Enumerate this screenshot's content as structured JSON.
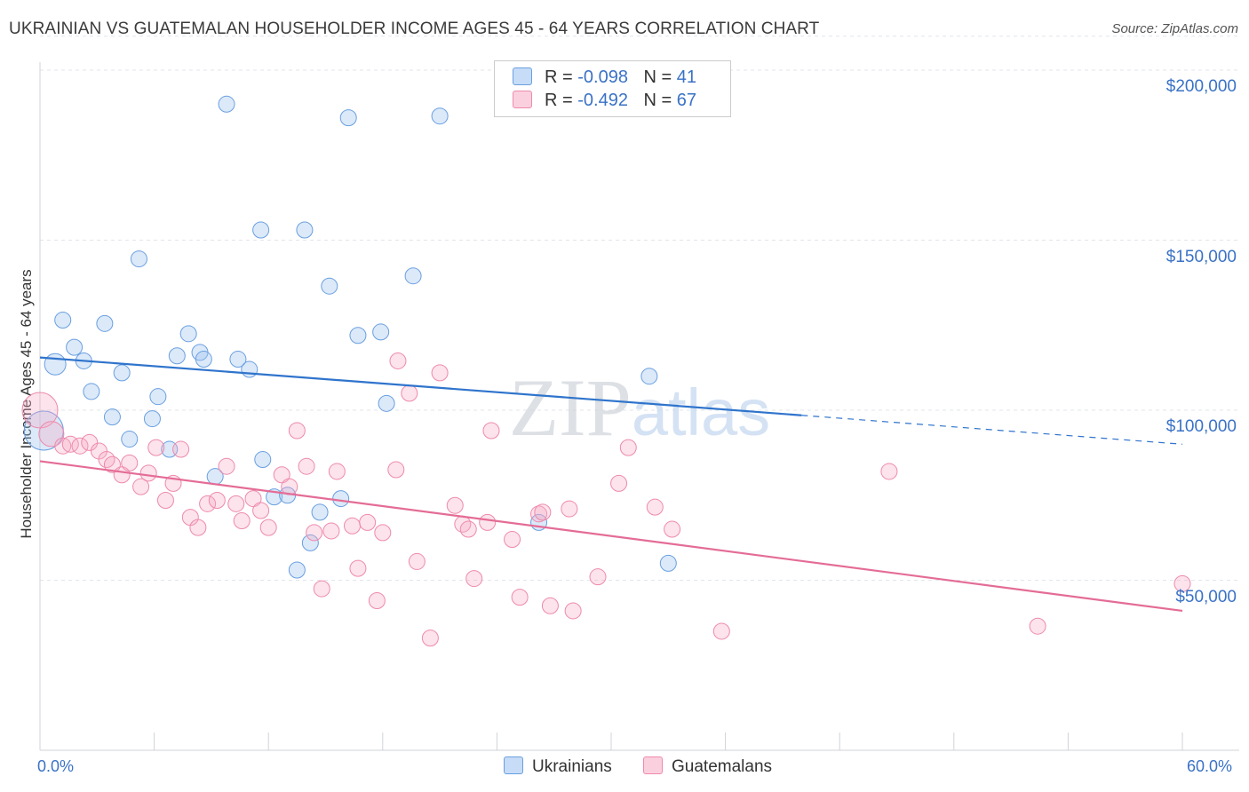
{
  "chart_data": {
    "type": "scatter",
    "title": "UKRAINIAN VS GUATEMALAN HOUSEHOLDER INCOME AGES 45 - 64 YEARS CORRELATION CHART",
    "source": "Source: ZipAtlas.com",
    "xlabel": "",
    "ylabel": "Householder Income Ages 45 - 64 years",
    "xlim": [
      0,
      60
    ],
    "ylim": [
      0,
      210000
    ],
    "x_tick_labels": [
      "0.0%",
      "60.0%"
    ],
    "y_tick_labels": [
      "$200,000",
      "$150,000",
      "$100,000",
      "$50,000"
    ],
    "y_ticks": [
      200000,
      150000,
      100000,
      50000
    ],
    "grid": true,
    "watermark": "ZIPatlas",
    "legend": [
      {
        "name": "Ukrainians",
        "r_label": "R =",
        "r": "-0.098",
        "n_label": "N =",
        "n": "41",
        "color": "#6a9fe0"
      },
      {
        "name": "Guatemalans",
        "r_label": "R =",
        "r": "-0.492",
        "n_label": "N =",
        "n": "67",
        "color": "#ee8aab"
      }
    ],
    "series": [
      {
        "name": "Ukrainians",
        "color": "#6a9fe0",
        "trend": {
          "x0": 0,
          "y0": 115500,
          "x1": 40,
          "y1": 98500,
          "dash_to_x": 60,
          "dash_to_y": 90000
        },
        "points": [
          [
            0.2,
            94000,
            22
          ],
          [
            0.8,
            113500,
            12
          ],
          [
            1.2,
            126500,
            9
          ],
          [
            1.8,
            118500,
            9
          ],
          [
            2.3,
            114500,
            9
          ],
          [
            2.7,
            105500,
            9
          ],
          [
            3.4,
            125500,
            9
          ],
          [
            3.8,
            98000,
            9
          ],
          [
            4.3,
            111000,
            9
          ],
          [
            4.7,
            91500,
            9
          ],
          [
            5.2,
            144500,
            9
          ],
          [
            5.9,
            97500,
            9
          ],
          [
            6.2,
            104000,
            9
          ],
          [
            6.8,
            88500,
            9
          ],
          [
            7.2,
            116000,
            9
          ],
          [
            7.8,
            122500,
            9
          ],
          [
            8.4,
            117000,
            9
          ],
          [
            8.6,
            115000,
            9
          ],
          [
            9.2,
            80500,
            9
          ],
          [
            9.8,
            190000,
            9
          ],
          [
            10.4,
            115000,
            9
          ],
          [
            11.0,
            112000,
            9
          ],
          [
            11.6,
            153000,
            9
          ],
          [
            11.7,
            85500,
            9
          ],
          [
            12.3,
            74500,
            9
          ],
          [
            13.0,
            75000,
            9
          ],
          [
            13.9,
            153000,
            9
          ],
          [
            13.5,
            53000,
            9
          ],
          [
            14.2,
            61000,
            9
          ],
          [
            14.7,
            70000,
            9
          ],
          [
            15.2,
            136500,
            9
          ],
          [
            15.8,
            74000,
            9
          ],
          [
            16.2,
            186000,
            9
          ],
          [
            16.7,
            122000,
            9
          ],
          [
            17.9,
            123000,
            9
          ],
          [
            18.2,
            102000,
            9
          ],
          [
            19.6,
            139500,
            9
          ],
          [
            21.0,
            186500,
            9
          ],
          [
            26.2,
            67000,
            9
          ],
          [
            32.0,
            110000,
            9
          ],
          [
            33.0,
            55000,
            9
          ]
        ]
      },
      {
        "name": "Guatemalans",
        "color": "#ee8aab",
        "trend": {
          "x0": 0,
          "y0": 85000,
          "x1": 60,
          "y1": 41000
        },
        "points": [
          [
            0.0,
            100000,
            20
          ],
          [
            0.6,
            93000,
            14
          ],
          [
            1.2,
            89500,
            9
          ],
          [
            1.6,
            90000,
            9
          ],
          [
            2.1,
            89500,
            9
          ],
          [
            2.6,
            90500,
            9
          ],
          [
            3.1,
            88000,
            9
          ],
          [
            3.5,
            85500,
            9
          ],
          [
            3.8,
            84000,
            9
          ],
          [
            4.3,
            81000,
            9
          ],
          [
            4.7,
            84500,
            9
          ],
          [
            5.3,
            77500,
            9
          ],
          [
            5.7,
            81500,
            9
          ],
          [
            6.1,
            89000,
            9
          ],
          [
            6.6,
            73500,
            9
          ],
          [
            7.0,
            78500,
            9
          ],
          [
            7.4,
            88500,
            9
          ],
          [
            7.9,
            68500,
            9
          ],
          [
            8.3,
            65500,
            9
          ],
          [
            8.8,
            72500,
            9
          ],
          [
            9.3,
            73500,
            9
          ],
          [
            9.8,
            83500,
            9
          ],
          [
            10.3,
            72500,
            9
          ],
          [
            10.6,
            67500,
            9
          ],
          [
            11.2,
            74000,
            9
          ],
          [
            11.6,
            70500,
            9
          ],
          [
            12.0,
            65500,
            9
          ],
          [
            12.7,
            81000,
            9
          ],
          [
            13.1,
            77500,
            9
          ],
          [
            13.5,
            94000,
            9
          ],
          [
            14.0,
            83500,
            9
          ],
          [
            14.4,
            64000,
            9
          ],
          [
            14.8,
            47500,
            9
          ],
          [
            15.3,
            64500,
            9
          ],
          [
            15.6,
            82000,
            9
          ],
          [
            16.4,
            66000,
            9
          ],
          [
            16.7,
            53500,
            9
          ],
          [
            17.2,
            67000,
            9
          ],
          [
            17.7,
            44000,
            9
          ],
          [
            18.0,
            64000,
            9
          ],
          [
            18.7,
            82500,
            9
          ],
          [
            18.8,
            114500,
            9
          ],
          [
            19.4,
            105000,
            9
          ],
          [
            19.8,
            55500,
            9
          ],
          [
            20.5,
            33000,
            9
          ],
          [
            21.0,
            111000,
            9
          ],
          [
            21.8,
            72000,
            9
          ],
          [
            22.2,
            66500,
            9
          ],
          [
            22.5,
            65000,
            9
          ],
          [
            22.8,
            50500,
            9
          ],
          [
            23.5,
            67000,
            9
          ],
          [
            23.7,
            94000,
            9
          ],
          [
            24.8,
            62000,
            9
          ],
          [
            25.2,
            45000,
            9
          ],
          [
            26.2,
            69500,
            9
          ],
          [
            26.4,
            70000,
            9
          ],
          [
            26.8,
            42500,
            9
          ],
          [
            27.8,
            71000,
            9
          ],
          [
            28.0,
            41000,
            9
          ],
          [
            29.3,
            51000,
            9
          ],
          [
            30.4,
            78500,
            9
          ],
          [
            30.9,
            89000,
            9
          ],
          [
            32.3,
            71500,
            9
          ],
          [
            33.2,
            65000,
            9
          ],
          [
            35.8,
            35000,
            9
          ],
          [
            44.6,
            82000,
            9
          ],
          [
            52.4,
            36500,
            9
          ],
          [
            60.0,
            49000,
            9
          ]
        ]
      }
    ]
  }
}
